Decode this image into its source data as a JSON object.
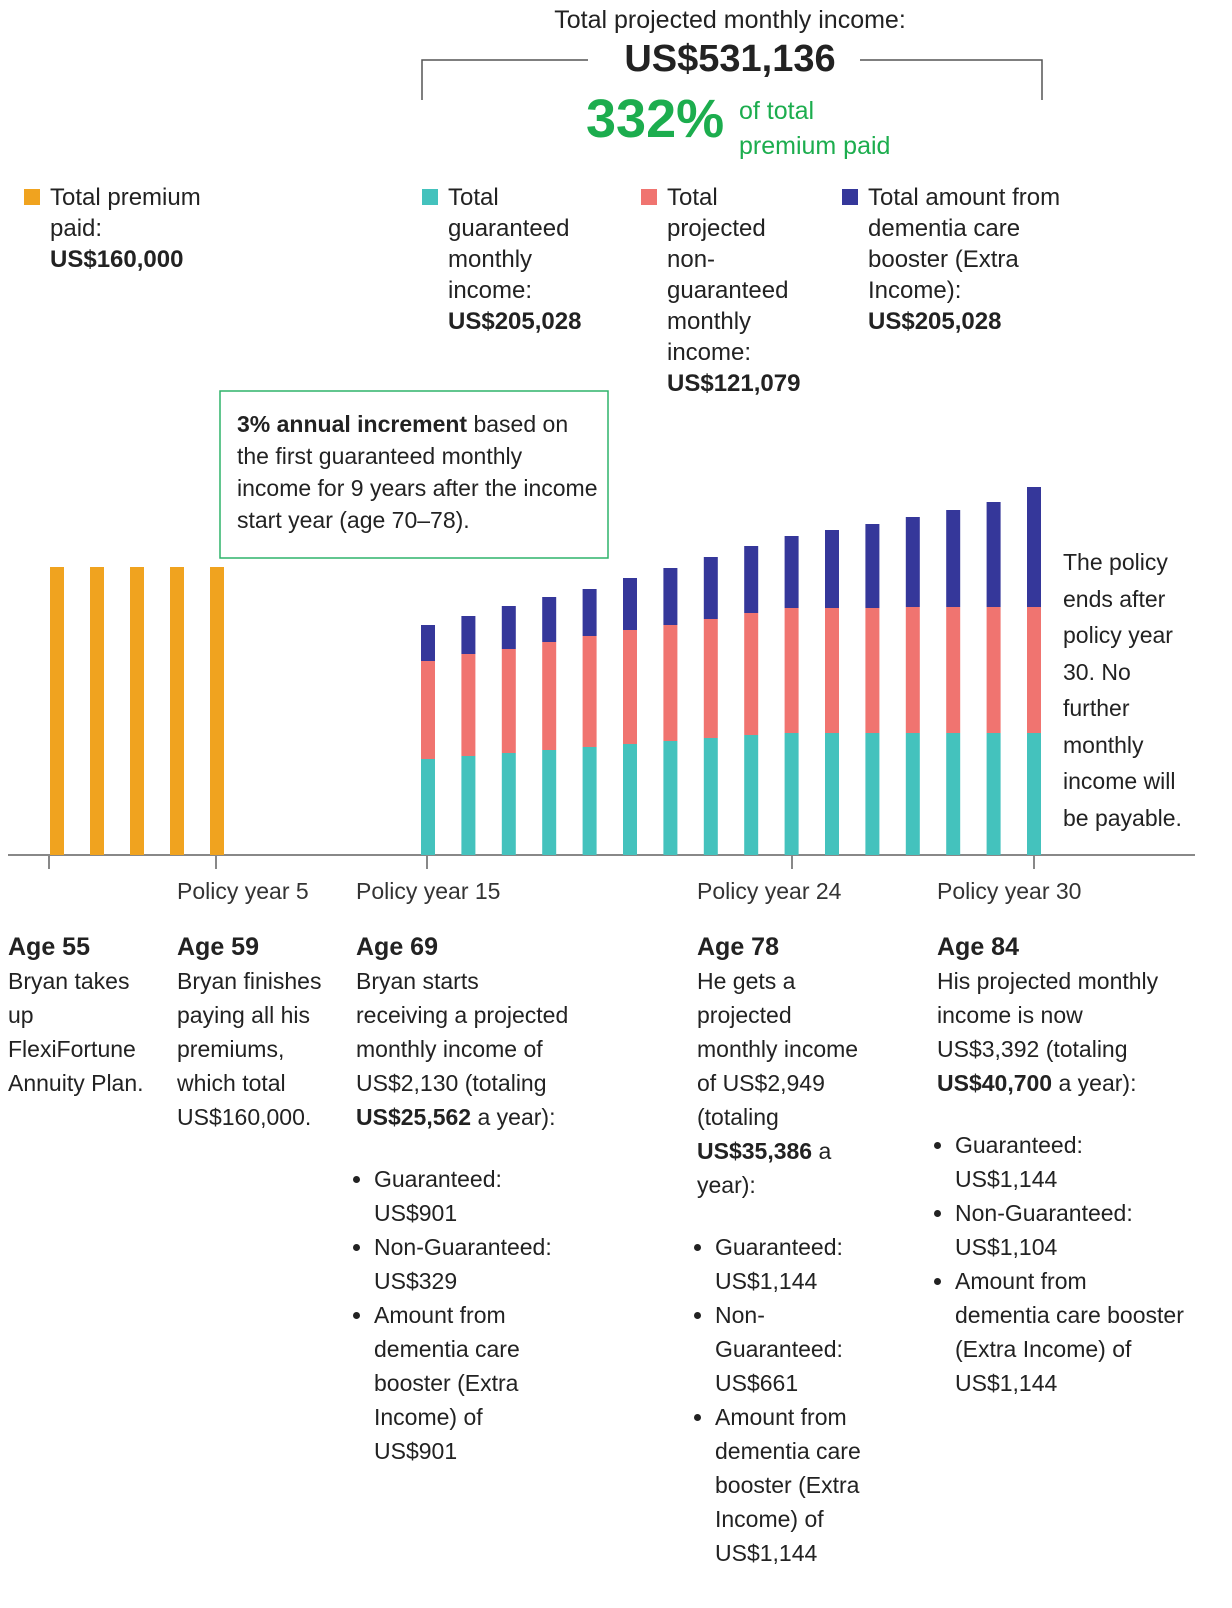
{
  "header": {
    "title": "Total projected monthly income:",
    "total": "US$531,136",
    "percent": "332%",
    "percent_text": [
      "of total",
      "premium paid"
    ]
  },
  "note": {
    "bold": "3% annual increment",
    "text": "based on the first guaranteed monthly income for 9 years after the income start year (age 70–78)."
  },
  "end_note": "The policy ends after policy year 30. No further monthly income will be payable.",
  "chart_data": {
    "type": "bar",
    "stacked": true,
    "series": [
      {
        "name": "Total premium paid:",
        "total": "US$160,000",
        "color": "#f0a31f",
        "values": [
          288,
          288,
          288,
          288,
          288
        ]
      },
      {
        "name": "Total guaranteed monthly income:",
        "total": "US$205,028",
        "color": "#44c2bd",
        "values": [
          96,
          99,
          102,
          105,
          108,
          111,
          114,
          117,
          120,
          122,
          122,
          122,
          122,
          122,
          122,
          122
        ]
      },
      {
        "name": "Total projected non-guaranteed monthly income:",
        "total": "US$121,079",
        "color": "#f07470",
        "values": [
          98,
          102,
          104,
          108,
          111,
          114,
          116,
          119,
          122,
          125,
          125,
          125,
          126,
          126,
          126,
          126
        ]
      },
      {
        "name": "Total amount from dementia care booster (Extra Income):",
        "total": "US$205,028",
        "color": "#35379a",
        "values": [
          36,
          38,
          43,
          45,
          47,
          52,
          57,
          62,
          67,
          72,
          78,
          84,
          90,
          97,
          105,
          120
        ]
      }
    ]
  },
  "timeline": [
    {
      "age": "Age 55",
      "text": "Bryan takes up FlexiFortune Annuity Plan."
    },
    {
      "policy_year": "Policy year 5",
      "age": "Age 59",
      "text": "Bryan finishes paying all his premiums, which total US$160,000."
    },
    {
      "policy_year": "Policy year 15",
      "age": "Age 69",
      "text": "Bryan starts receiving a projected monthly income of US$2,130 (totaling",
      "bold": "US$25,562",
      "after": "a year):",
      "bullets": [
        "Guaranteed: US$901",
        "Non-Guaranteed: US$329",
        "Amount from dementia care booster (Extra Income) of US$901"
      ]
    },
    {
      "policy_year": "Policy year 24",
      "age": "Age 78",
      "text": "He gets a projected monthly income of US$2,949 (totaling",
      "bold": "US$35,386",
      "after": "a year):",
      "bullets": [
        "Guaranteed: US$1,144",
        "Non-Guaranteed: US$661",
        "Amount from dementia care booster (Extra Income) of US$1,144"
      ]
    },
    {
      "policy_year": "Policy year 30",
      "age": "Age 84",
      "text": "His projected monthly income is now US$3,392 (totaling",
      "bold": "US$40,700",
      "after": "a year):",
      "bullets": [
        "Guaranteed: US$1,144",
        "Non-Guaranteed: US$1,104",
        "Amount from dementia care booster (Extra Income) of US$1,144"
      ]
    }
  ]
}
